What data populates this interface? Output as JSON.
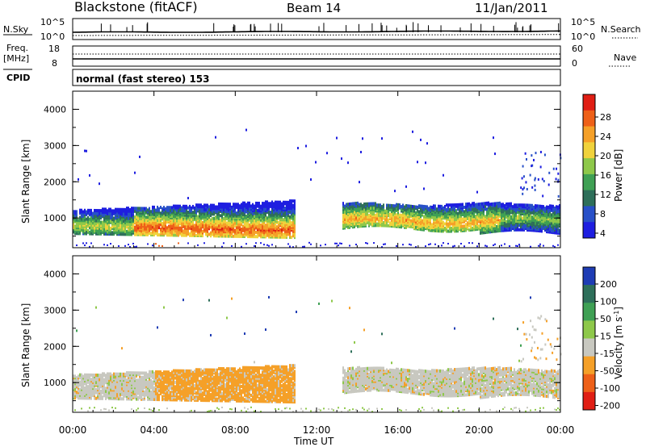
{
  "header": {
    "station": "Blackstone (fitACF)",
    "beam": "Beam 14",
    "date": "11/Jan/2011"
  },
  "labels": {
    "nsky": "N.Sky",
    "freq": "Freq.",
    "freq_unit": "[MHz]",
    "cpid": "CPID",
    "nsearch": "N.Search",
    "nave": "Nave",
    "cpid_text": "normal (fast stereo) 153"
  },
  "ticks": {
    "noise_left": [
      "10^5",
      "10^0"
    ],
    "noise_right": [
      "10^5",
      "10^0"
    ],
    "freq_left": [
      "18",
      "8"
    ],
    "nave_right": [
      "60",
      "0"
    ],
    "time": [
      "00:00",
      "04:00",
      "08:00",
      "12:00",
      "16:00",
      "20:00",
      "00:00"
    ],
    "range": [
      "4000",
      "3000",
      "2000",
      "1000"
    ]
  },
  "chart_data": [
    {
      "type": "line",
      "title": "",
      "ylabel": "N.Sky / N.Search",
      "series": [
        {
          "name": "N.Sky",
          "style": "solid"
        },
        {
          "name": "N.Search",
          "style": "dotted"
        }
      ]
    },
    {
      "type": "line",
      "ylabel": "Freq. [MHz] / Nave",
      "ylim_freq": [
        8,
        18
      ],
      "ylim_nave": [
        0,
        60
      ],
      "series": [
        {
          "name": "Freq.",
          "style": "solid",
          "approx_value": 10
        },
        {
          "name": "Nave",
          "style": "dotted",
          "approx_value": 30
        }
      ]
    },
    {
      "type": "heatmap",
      "xlabel": "",
      "ylabel": "Slant Range [km]",
      "xlim_hours": [
        0,
        24
      ],
      "ylim_km": [
        180,
        4500
      ],
      "colorbar": {
        "label": "Power [dB]",
        "ticks": [
          "28",
          "24",
          "20",
          "16",
          "12",
          "8",
          "4"
        ],
        "colors": [
          "#1e1ee0",
          "#2850c8",
          "#2e6f5a",
          "#3fa054",
          "#8ec84a",
          "#f0d23c",
          "#f5a028",
          "#ee6018",
          "#e01e14"
        ]
      },
      "echo_bands": [
        {
          "t0": 0.0,
          "t1": 10.9,
          "r_km": [
            600,
            1500
          ],
          "peak_dB": 26
        },
        {
          "t0": 13.2,
          "t1": 24.0,
          "r_km": [
            700,
            1500
          ],
          "peak_dB": 22
        }
      ]
    },
    {
      "type": "heatmap",
      "xlabel": "Time UT",
      "ylabel": "Slant Range [km]",
      "xlim_hours": [
        0,
        24
      ],
      "ylim_km": [
        180,
        4500
      ],
      "colorbar": {
        "label": "Velocity [m s^-1]",
        "ticks": [
          "200",
          "100",
          "50",
          "15",
          "-15",
          "-50",
          "-100",
          "-200"
        ],
        "colors": [
          "#1e3cb4",
          "#2e6f5a",
          "#3fa054",
          "#8ec84a",
          "#c8c8c0",
          "#f5a028",
          "#ee6018",
          "#e01e14"
        ]
      },
      "echo_bands": [
        {
          "t0": 0.0,
          "t1": 4.0,
          "r_km": [
            600,
            1200
          ],
          "velocity": "-15 to 15"
        },
        {
          "t0": 4.0,
          "t1": 10.9,
          "r_km": [
            600,
            1400
          ],
          "velocity": "-50"
        },
        {
          "t0": 13.2,
          "t1": 24.0,
          "r_km": [
            700,
            1500
          ],
          "velocity": "-15 to 15"
        }
      ]
    }
  ],
  "xaxis": {
    "label": "Time UT"
  },
  "yaxis": {
    "label": "Slant Range [km]"
  },
  "colorbar_power_title": "Power [dB]",
  "colorbar_velocity_title_main": "Velocity [m s",
  "colorbar_velocity_title_sup": "-1",
  "colorbar_velocity_title_end": "]"
}
